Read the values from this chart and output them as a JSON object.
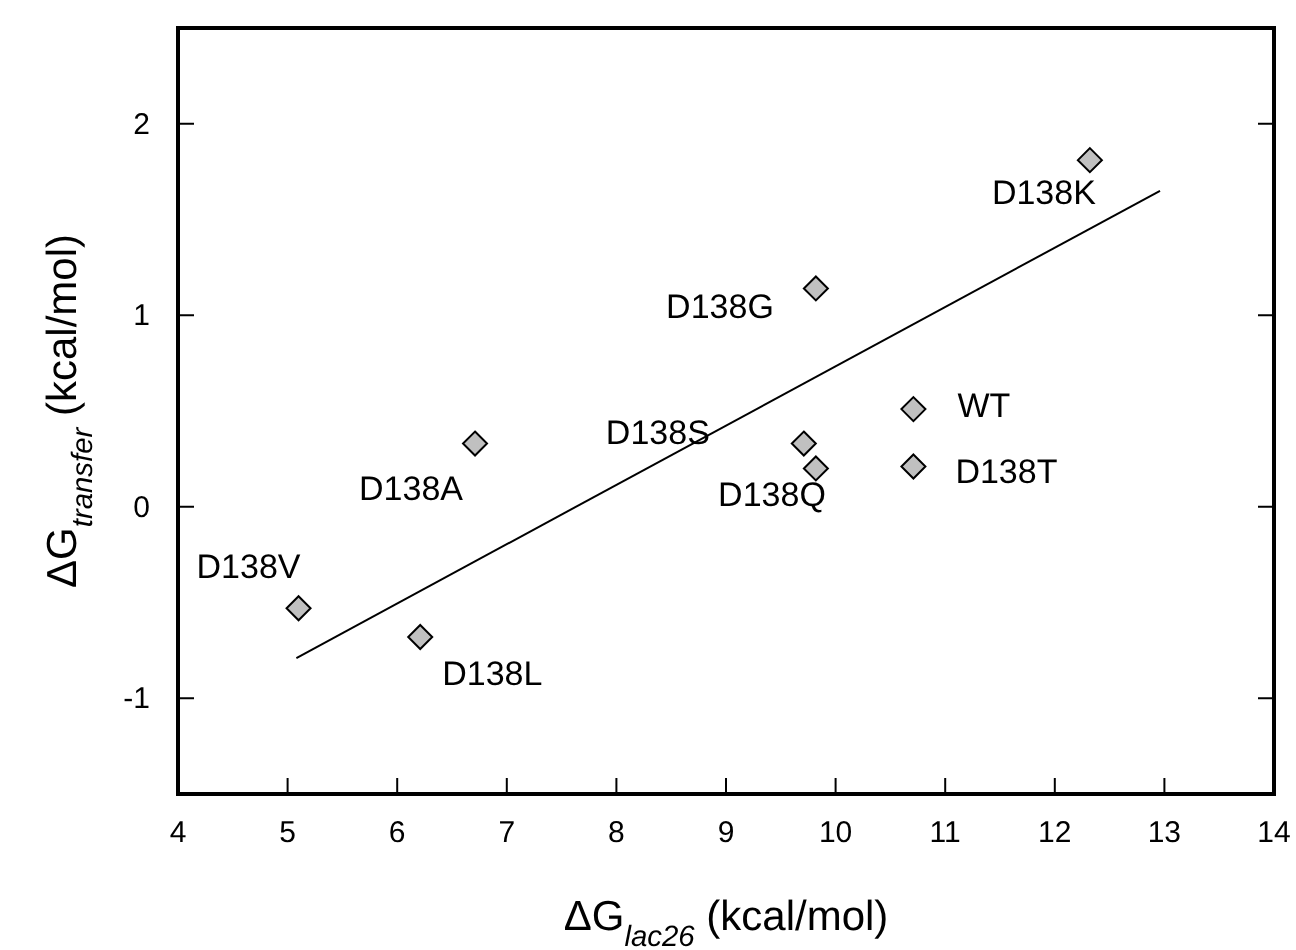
{
  "chart_data": {
    "type": "scatter",
    "xlabel": "ΔG$_{lac26}$ (kcal/mol)",
    "ylabel": "ΔG$_{transfer}$ (kcal/mol)",
    "xlim": [
      4,
      14
    ],
    "ylim": [
      -1.5,
      2.5
    ],
    "xticks": [
      4,
      5,
      6,
      7,
      8,
      9,
      10,
      11,
      12,
      13,
      14
    ],
    "yticks": [
      -1,
      0,
      1,
      2
    ],
    "grid": false,
    "marker": "diamond",
    "series": [
      {
        "color": "#c0c0c0",
        "x": [
          5.1,
          6.21,
          6.71,
          9.71,
          9.82,
          9.82,
          12.32,
          10.71,
          10.71
        ],
        "values": [
          -0.53,
          -0.68,
          0.33,
          0.33,
          0.2,
          1.14,
          1.81,
          0.51,
          0.21
        ]
      },
      {
        "type": "line",
        "color": "#000000",
        "x": [
          5.08,
          12.96
        ],
        "values": [
          -0.79,
          1.65
        ],
        "marker": "none",
        "line_style": "solid"
      }
    ],
    "annotations": [
      {
        "text": "D138V",
        "x": 5.1,
        "y": -0.53
      },
      {
        "text": "D138L",
        "x": 6.21,
        "y": -0.68
      },
      {
        "text": "D138A",
        "x": 6.71,
        "y": 0.33
      },
      {
        "text": "D138S",
        "x": 9.71,
        "y": 0.33
      },
      {
        "text": "D138Q",
        "x": 9.82,
        "y": 0.2
      },
      {
        "text": "D138G",
        "x": 9.82,
        "y": 1.14
      },
      {
        "text": "D138K",
        "x": 12.32,
        "y": 1.81
      },
      {
        "text": "WT",
        "x": 10.71,
        "y": 0.51
      },
      {
        "text": "D138T",
        "x": 10.71,
        "y": 0.21
      }
    ]
  }
}
